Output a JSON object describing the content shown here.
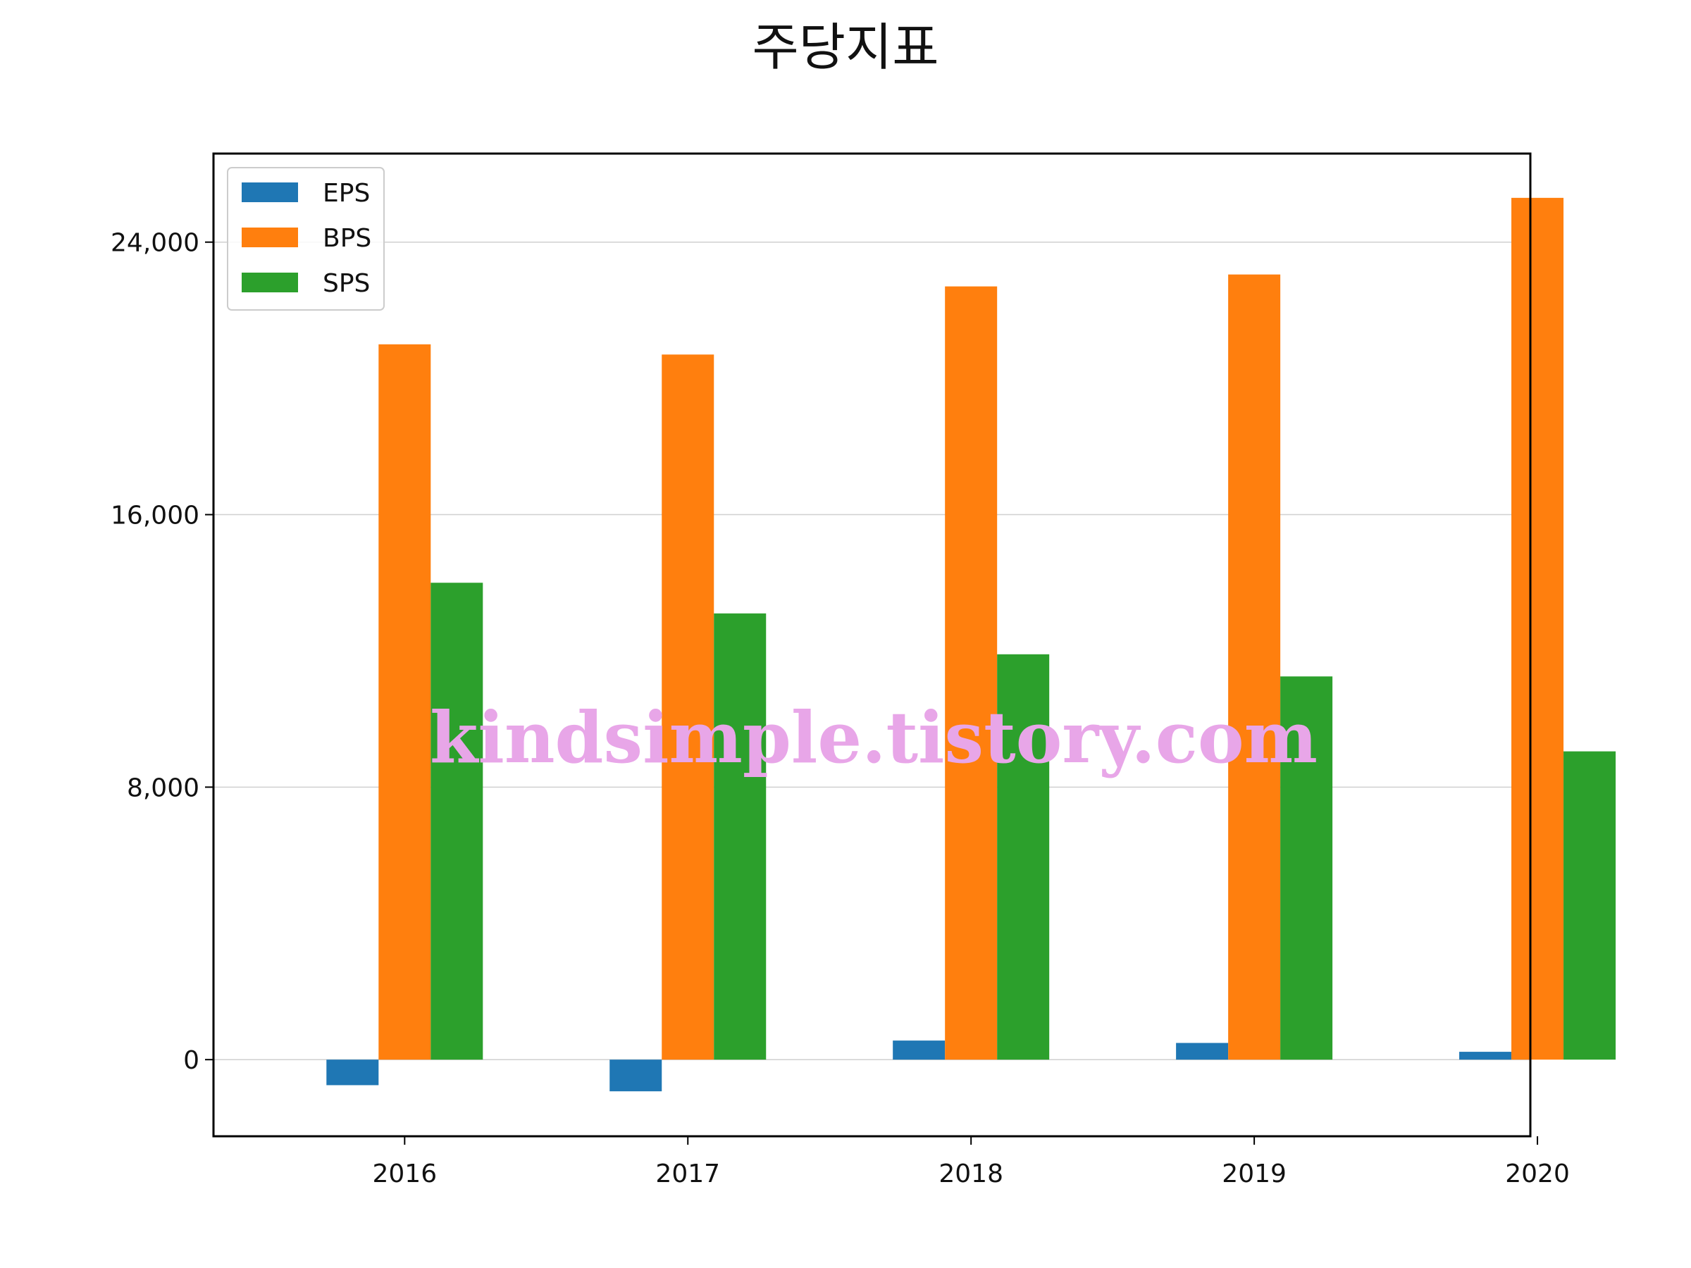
{
  "chart_data": {
    "type": "bar",
    "title": "주당지표",
    "xlabel": "",
    "ylabel": "",
    "categories": [
      "2016",
      "2017",
      "2018",
      "2019",
      "2020"
    ],
    "series": [
      {
        "name": "EPS",
        "color": "#1f77b4",
        "values": [
          -750,
          -930,
          560,
          490,
          230
        ]
      },
      {
        "name": "BPS",
        "color": "#ff7f0e",
        "values": [
          21000,
          20700,
          22700,
          23050,
          25300
        ]
      },
      {
        "name": "SPS",
        "color": "#2ca02c",
        "values": [
          14000,
          13100,
          11900,
          11250,
          9050
        ]
      }
    ],
    "ylim": [
      -2250,
      26600
    ],
    "yticks": [
      0,
      8000,
      16000,
      24000
    ],
    "ytick_labels": [
      "0",
      "8,000",
      "16,000",
      "24,000"
    ],
    "grid": "horizontal",
    "legend_position": "top-left",
    "watermark": "kindsimple.tistory.com",
    "watermark_color": "#e8a6e8"
  }
}
